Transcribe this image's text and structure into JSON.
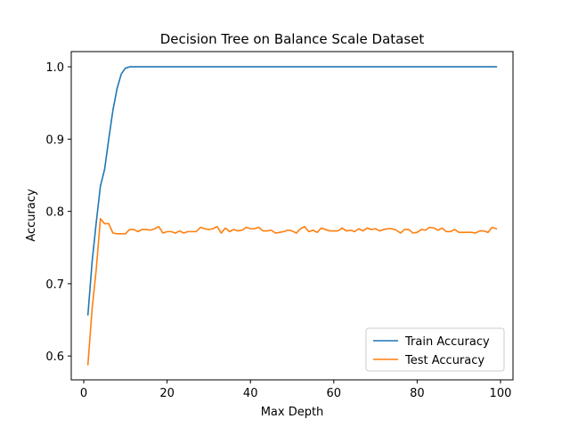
{
  "chart_data": {
    "type": "line",
    "title": "Decision Tree on Balance Scale Dataset",
    "xlabel": "Max Depth",
    "ylabel": "Accuracy",
    "xlim": [
      -3,
      103
    ],
    "ylim": [
      0.567,
      1.021
    ],
    "xticks": [
      0,
      20,
      40,
      60,
      80,
      100
    ],
    "yticks": [
      0.6,
      0.7,
      0.8,
      0.9,
      1.0
    ],
    "xtick_labels": [
      "0",
      "20",
      "40",
      "60",
      "80",
      "100"
    ],
    "ytick_labels": [
      "0.6",
      "0.7",
      "0.8",
      "0.9",
      "1.0"
    ],
    "grid": false,
    "legend_position": "lower-right",
    "x": [
      1,
      2,
      3,
      4,
      5,
      6,
      7,
      8,
      9,
      10,
      11,
      12,
      13,
      14,
      15,
      16,
      17,
      18,
      19,
      20,
      21,
      22,
      23,
      24,
      25,
      26,
      27,
      28,
      29,
      30,
      31,
      32,
      33,
      34,
      35,
      36,
      37,
      38,
      39,
      40,
      41,
      42,
      43,
      44,
      45,
      46,
      47,
      48,
      49,
      50,
      51,
      52,
      53,
      54,
      55,
      56,
      57,
      58,
      59,
      60,
      61,
      62,
      63,
      64,
      65,
      66,
      67,
      68,
      69,
      70,
      71,
      72,
      73,
      74,
      75,
      76,
      77,
      78,
      79,
      80,
      81,
      82,
      83,
      84,
      85,
      86,
      87,
      88,
      89,
      90,
      91,
      92,
      93,
      94,
      95,
      96,
      97,
      98,
      99
    ],
    "series": [
      {
        "name": "Train Accuracy",
        "color": "#1f77b4",
        "values": [
          0.657,
          0.73,
          0.785,
          0.835,
          0.858,
          0.9,
          0.94,
          0.97,
          0.99,
          0.998,
          1.0,
          1.0,
          1.0,
          1.0,
          1.0,
          1.0,
          1.0,
          1.0,
          1.0,
          1.0,
          1.0,
          1.0,
          1.0,
          1.0,
          1.0,
          1.0,
          1.0,
          1.0,
          1.0,
          1.0,
          1.0,
          1.0,
          1.0,
          1.0,
          1.0,
          1.0,
          1.0,
          1.0,
          1.0,
          1.0,
          1.0,
          1.0,
          1.0,
          1.0,
          1.0,
          1.0,
          1.0,
          1.0,
          1.0,
          1.0,
          1.0,
          1.0,
          1.0,
          1.0,
          1.0,
          1.0,
          1.0,
          1.0,
          1.0,
          1.0,
          1.0,
          1.0,
          1.0,
          1.0,
          1.0,
          1.0,
          1.0,
          1.0,
          1.0,
          1.0,
          1.0,
          1.0,
          1.0,
          1.0,
          1.0,
          1.0,
          1.0,
          1.0,
          1.0,
          1.0,
          1.0,
          1.0,
          1.0,
          1.0,
          1.0,
          1.0,
          1.0,
          1.0,
          1.0,
          1.0,
          1.0,
          1.0,
          1.0,
          1.0,
          1.0,
          1.0,
          1.0,
          1.0,
          1.0
        ]
      },
      {
        "name": "Test Accuracy",
        "color": "#ff7f0e",
        "values": [
          0.588,
          0.665,
          0.72,
          0.79,
          0.783,
          0.783,
          0.77,
          0.769,
          0.769,
          0.769,
          0.775,
          0.775,
          0.772,
          0.775,
          0.775,
          0.774,
          0.776,
          0.779,
          0.77,
          0.772,
          0.772,
          0.77,
          0.773,
          0.77,
          0.772,
          0.772,
          0.772,
          0.778,
          0.776,
          0.775,
          0.776,
          0.779,
          0.77,
          0.777,
          0.772,
          0.775,
          0.773,
          0.774,
          0.778,
          0.776,
          0.776,
          0.778,
          0.773,
          0.773,
          0.774,
          0.77,
          0.771,
          0.772,
          0.774,
          0.773,
          0.77,
          0.776,
          0.779,
          0.772,
          0.774,
          0.771,
          0.777,
          0.775,
          0.773,
          0.773,
          0.773,
          0.777,
          0.773,
          0.774,
          0.772,
          0.776,
          0.773,
          0.777,
          0.775,
          0.776,
          0.773,
          0.775,
          0.776,
          0.776,
          0.774,
          0.77,
          0.775,
          0.775,
          0.77,
          0.771,
          0.775,
          0.774,
          0.778,
          0.777,
          0.774,
          0.777,
          0.772,
          0.772,
          0.775,
          0.771,
          0.771,
          0.771,
          0.771,
          0.77,
          0.773,
          0.773,
          0.771,
          0.778,
          0.776
        ]
      }
    ]
  }
}
